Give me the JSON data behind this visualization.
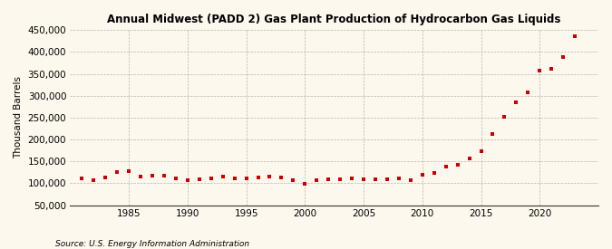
{
  "title": "Annual Midwest (PADD 2) Gas Plant Production of Hydrocarbon Gas Liquids",
  "ylabel": "Thousand Barrels",
  "source": "Source: U.S. Energy Information Administration",
  "background_color": "#fdf8ee",
  "plot_background_color": "#fdf8ee",
  "marker_color": "#cc0000",
  "marker": "s",
  "marker_size": 3.5,
  "ylim": [
    50000,
    450000
  ],
  "yticks": [
    50000,
    100000,
    150000,
    200000,
    250000,
    300000,
    350000,
    400000,
    450000
  ],
  "xlim": [
    1980,
    2025
  ],
  "xticks": [
    1985,
    1990,
    1995,
    2000,
    2005,
    2010,
    2015,
    2020
  ],
  "years": [
    1981,
    1982,
    1983,
    1984,
    1985,
    1986,
    1987,
    1988,
    1989,
    1990,
    1991,
    1992,
    1993,
    1994,
    1995,
    1996,
    1997,
    1998,
    1999,
    2000,
    2001,
    2002,
    2003,
    2004,
    2005,
    2006,
    2007,
    2008,
    2009,
    2010,
    2011,
    2012,
    2013,
    2014,
    2015,
    2016,
    2017,
    2018,
    2019,
    2020,
    2021,
    2022,
    2023
  ],
  "values": [
    111000,
    108000,
    113000,
    125000,
    128000,
    115000,
    118000,
    118000,
    112000,
    107000,
    109000,
    111000,
    115000,
    112000,
    112000,
    113000,
    115000,
    113000,
    108000,
    99000,
    108000,
    110000,
    110000,
    112000,
    110000,
    109000,
    110000,
    111000,
    108000,
    120000,
    124000,
    139000,
    143000,
    157000,
    173000,
    213000,
    252000,
    285000,
    308000,
    357000,
    362000,
    388000,
    437000
  ]
}
